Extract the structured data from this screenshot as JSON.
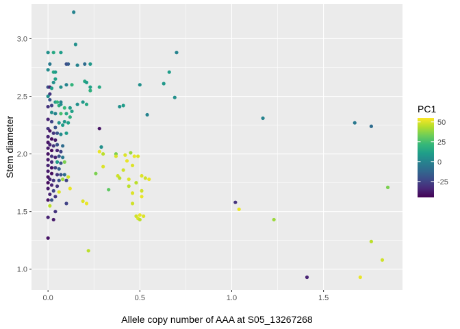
{
  "chart_data": {
    "type": "scatter",
    "xlabel": "Allele copy number of AAA at S05_13267268",
    "ylabel": "Stem diameter",
    "xlim": [
      -0.09,
      1.93
    ],
    "ylim": [
      0.82,
      3.3
    ],
    "x_ticks": [
      0.0,
      0.5,
      1.0,
      1.5
    ],
    "x_tick_labels": [
      "0.0",
      "0.5",
      "1.0",
      "1.5"
    ],
    "y_ticks": [
      1.0,
      1.5,
      2.0,
      2.5,
      3.0
    ],
    "y_tick_labels": [
      "1.0",
      "1.5",
      "2.0",
      "2.5",
      "3.0"
    ],
    "grid": true,
    "color_scale": {
      "name": "viridis",
      "stops": [
        "#440154",
        "#482878",
        "#3E4A89",
        "#31688E",
        "#26828E",
        "#1F9E89",
        "#35B779",
        "#6DCD59",
        "#B4DE2C",
        "#FDE725"
      ],
      "range": [
        -45,
        55
      ]
    },
    "legend": {
      "title": "PC1",
      "position": "right",
      "ticks": [
        50,
        25,
        0,
        -25
      ],
      "tick_labels": [
        "50",
        "25",
        "0",
        "-25"
      ]
    },
    "points": [
      [
        0.14,
        3.23,
        0
      ],
      [
        0.15,
        2.95,
        5
      ],
      [
        0.03,
        2.88,
        15
      ],
      [
        0.07,
        2.88,
        10
      ],
      [
        0.0,
        2.88,
        5
      ],
      [
        0.01,
        2.78,
        -5
      ],
      [
        0.11,
        2.78,
        -15
      ],
      [
        0.1,
        2.78,
        -20
      ],
      [
        0.16,
        2.77,
        0
      ],
      [
        0.2,
        2.78,
        -10
      ],
      [
        0.23,
        2.78,
        8
      ],
      [
        0.0,
        2.73,
        3
      ],
      [
        0.03,
        2.71,
        15
      ],
      [
        0.04,
        2.71,
        10
      ],
      [
        0.04,
        2.65,
        12
      ],
      [
        0.03,
        2.62,
        5
      ],
      [
        0.0,
        2.58,
        -20
      ],
      [
        0.01,
        2.58,
        -35
      ],
      [
        0.01,
        2.52,
        -30
      ],
      [
        0.02,
        2.57,
        10
      ],
      [
        0.07,
        2.58,
        5
      ],
      [
        0.1,
        2.6,
        0
      ],
      [
        0.13,
        2.6,
        20
      ],
      [
        0.2,
        2.63,
        15
      ],
      [
        0.21,
        2.62,
        10
      ],
      [
        0.23,
        2.58,
        12
      ],
      [
        0.23,
        2.55,
        18
      ],
      [
        0.28,
        2.58,
        15
      ],
      [
        0.0,
        2.5,
        5
      ],
      [
        0.01,
        2.47,
        -20
      ],
      [
        0.04,
        2.45,
        8
      ],
      [
        0.05,
        2.45,
        20
      ],
      [
        0.06,
        2.42,
        18
      ],
      [
        0.07,
        2.43,
        5
      ],
      [
        0.07,
        2.45,
        0
      ],
      [
        0.02,
        2.42,
        -25
      ],
      [
        0.0,
        2.41,
        -30
      ],
      [
        0.09,
        2.4,
        22
      ],
      [
        0.12,
        2.4,
        10
      ],
      [
        0.16,
        2.43,
        5
      ],
      [
        0.19,
        2.45,
        8
      ],
      [
        0.21,
        2.43,
        15
      ],
      [
        0.13,
        2.37,
        12
      ],
      [
        0.02,
        2.36,
        5
      ],
      [
        0.04,
        2.35,
        0
      ],
      [
        0.07,
        2.35,
        25
      ],
      [
        0.1,
        2.35,
        15
      ],
      [
        0.12,
        2.32,
        18
      ],
      [
        0.0,
        2.3,
        -35
      ],
      [
        0.02,
        2.28,
        -25
      ],
      [
        0.06,
        2.27,
        5
      ],
      [
        0.09,
        2.28,
        8
      ],
      [
        0.11,
        2.27,
        12
      ],
      [
        0.08,
        2.25,
        10
      ],
      [
        0.04,
        2.23,
        -20
      ],
      [
        0.0,
        2.22,
        -30
      ],
      [
        0.01,
        2.2,
        -40
      ],
      [
        0.03,
        2.18,
        -30
      ],
      [
        0.05,
        2.18,
        -20
      ],
      [
        0.07,
        2.17,
        3
      ],
      [
        0.1,
        2.18,
        10
      ],
      [
        0.0,
        2.15,
        -35
      ],
      [
        0.02,
        2.13,
        -42
      ],
      [
        0.04,
        2.12,
        -38
      ],
      [
        0.0,
        2.1,
        -40
      ],
      [
        0.01,
        2.08,
        -35
      ],
      [
        0.03,
        2.07,
        -30
      ],
      [
        0.05,
        2.08,
        -20
      ],
      [
        0.08,
        2.07,
        -10
      ],
      [
        0.0,
        2.05,
        -38
      ],
      [
        0.02,
        2.03,
        -42
      ],
      [
        0.05,
        2.03,
        -35
      ],
      [
        0.07,
        2.02,
        -25
      ],
      [
        0.0,
        2.0,
        -40
      ],
      [
        0.02,
        1.98,
        -30
      ],
      [
        0.04,
        1.97,
        -35
      ],
      [
        0.06,
        1.98,
        -20
      ],
      [
        0.08,
        1.97,
        -5
      ],
      [
        0.0,
        1.95,
        -38
      ],
      [
        0.02,
        1.93,
        -33
      ],
      [
        0.05,
        1.93,
        10
      ],
      [
        0.07,
        1.92,
        -20
      ],
      [
        0.09,
        1.93,
        35
      ],
      [
        0.0,
        1.9,
        -35
      ],
      [
        0.02,
        1.88,
        -40
      ],
      [
        0.04,
        1.88,
        -25
      ],
      [
        0.06,
        1.87,
        -15
      ],
      [
        0.0,
        1.85,
        -38
      ],
      [
        0.02,
        1.83,
        -42
      ],
      [
        0.05,
        1.82,
        -30
      ],
      [
        0.07,
        1.82,
        -20
      ],
      [
        0.09,
        1.82,
        -10
      ],
      [
        0.0,
        1.8,
        -40
      ],
      [
        0.01,
        1.78,
        -35
      ],
      [
        0.03,
        1.77,
        -30
      ],
      [
        0.06,
        1.77,
        -20
      ],
      [
        0.08,
        1.78,
        40
      ],
      [
        0.1,
        1.77,
        -25
      ],
      [
        0.11,
        1.8,
        48
      ],
      [
        0.0,
        1.75,
        -42
      ],
      [
        0.02,
        1.73,
        -35
      ],
      [
        0.05,
        1.72,
        -30
      ],
      [
        0.0,
        1.7,
        -38
      ],
      [
        0.03,
        1.68,
        -25
      ],
      [
        0.06,
        1.67,
        50
      ],
      [
        0.01,
        1.65,
        -35
      ],
      [
        0.04,
        1.63,
        -30
      ],
      [
        0.0,
        1.6,
        -40
      ],
      [
        0.02,
        1.6,
        -20
      ],
      [
        0.01,
        1.55,
        45
      ],
      [
        0.1,
        1.57,
        -25
      ],
      [
        0.04,
        1.5,
        -30
      ],
      [
        0.0,
        1.45,
        -35
      ],
      [
        0.03,
        1.43,
        -38
      ],
      [
        0.0,
        1.27,
        -40
      ],
      [
        0.12,
        1.7,
        52
      ],
      [
        0.19,
        1.59,
        50
      ],
      [
        0.21,
        1.57,
        52
      ],
      [
        0.22,
        1.16,
        45
      ],
      [
        0.26,
        1.83,
        35
      ],
      [
        0.28,
        2.02,
        52
      ],
      [
        0.28,
        2.22,
        -40
      ],
      [
        0.29,
        2.06,
        5
      ],
      [
        0.3,
        1.89,
        50
      ],
      [
        0.3,
        2.0,
        45
      ],
      [
        0.33,
        1.69,
        30
      ],
      [
        0.37,
        2.0,
        35
      ],
      [
        0.37,
        1.98,
        50
      ],
      [
        0.38,
        1.81,
        48
      ],
      [
        0.39,
        1.79,
        45
      ],
      [
        0.39,
        2.41,
        5
      ],
      [
        0.41,
        2.42,
        10
      ],
      [
        0.41,
        1.86,
        48
      ],
      [
        0.42,
        1.99,
        50
      ],
      [
        0.43,
        1.94,
        52
      ],
      [
        0.44,
        1.78,
        50
      ],
      [
        0.44,
        1.72,
        45
      ],
      [
        0.45,
        2.01,
        40
      ],
      [
        0.46,
        1.9,
        50
      ],
      [
        0.46,
        1.57,
        48
      ],
      [
        0.46,
        1.66,
        50
      ],
      [
        0.47,
        1.98,
        52
      ],
      [
        0.48,
        1.75,
        45
      ],
      [
        0.48,
        1.46,
        48
      ],
      [
        0.49,
        1.98,
        50
      ],
      [
        0.49,
        1.44,
        50
      ],
      [
        0.5,
        1.43,
        45
      ],
      [
        0.5,
        1.47,
        52
      ],
      [
        0.51,
        1.81,
        50
      ],
      [
        0.51,
        1.68,
        48
      ],
      [
        0.5,
        2.6,
        5
      ],
      [
        0.51,
        1.63,
        52
      ],
      [
        0.52,
        1.46,
        50
      ],
      [
        0.53,
        1.79,
        48
      ],
      [
        0.54,
        2.34,
        0
      ],
      [
        0.55,
        1.78,
        52
      ],
      [
        0.63,
        2.61,
        8
      ],
      [
        0.66,
        2.71,
        10
      ],
      [
        0.69,
        2.49,
        5
      ],
      [
        0.7,
        2.88,
        0
      ],
      [
        1.02,
        1.58,
        -30
      ],
      [
        1.04,
        1.52,
        52
      ],
      [
        1.17,
        2.31,
        0
      ],
      [
        1.23,
        1.43,
        40
      ],
      [
        1.41,
        0.93,
        -35
      ],
      [
        1.67,
        2.27,
        -5
      ],
      [
        1.7,
        0.93,
        52
      ],
      [
        1.76,
        2.24,
        -10
      ],
      [
        1.76,
        1.24,
        45
      ],
      [
        1.82,
        1.08,
        48
      ],
      [
        1.85,
        1.71,
        35
      ]
    ]
  }
}
